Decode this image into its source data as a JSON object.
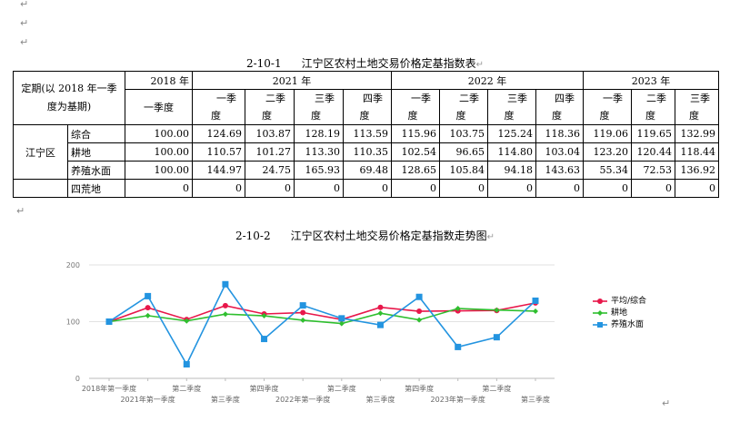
{
  "paragraph_marks": [
    "↵",
    "↵",
    "↵"
  ],
  "table": {
    "number": "2-10-1",
    "title": "江宁区农村土地交易价格定基指数表",
    "header_label": "定期(以 2018 年一季度为基期)",
    "years": [
      "2018 年",
      "2021 年",
      "2022 年",
      "2023 年"
    ],
    "quarters": [
      "一季度",
      "一季度",
      "二季度",
      "三季度",
      "四季度",
      "一季度",
      "二季度",
      "三季度",
      "四季度",
      "一季度",
      "二季度",
      "三季度"
    ],
    "region": "江宁区",
    "rows": [
      {
        "label": "综合",
        "values": [
          "100.00",
          "124.69",
          "103.87",
          "128.19",
          "113.59",
          "115.96",
          "103.75",
          "125.24",
          "118.36",
          "119.06",
          "119.65",
          "132.99"
        ]
      },
      {
        "label": "耕地",
        "values": [
          "100.00",
          "110.57",
          "101.27",
          "113.30",
          "110.35",
          "102.54",
          "96.65",
          "114.80",
          "103.04",
          "123.20",
          "120.44",
          "118.44"
        ]
      },
      {
        "label": "养殖水面",
        "values": [
          "100.00",
          "144.97",
          "24.75",
          "165.93",
          "69.48",
          "128.65",
          "105.84",
          "94.18",
          "143.63",
          "55.34",
          "72.53",
          "136.92"
        ]
      },
      {
        "label": "四荒地",
        "values": [
          "0",
          "0",
          "0",
          "0",
          "0",
          "0",
          "0",
          "0",
          "0",
          "0",
          "0",
          "0"
        ]
      }
    ]
  },
  "chart_section": {
    "number": "2-10-2",
    "title": "江宁区农村土地交易价格定基指数走势图"
  },
  "chart_data": {
    "type": "line",
    "categories": [
      "2018年第一季度",
      "2021年第一季度",
      "第二季度",
      "第三季度",
      "第四季度",
      "2022年第一季度",
      "第二季度",
      "第三季度",
      "第四季度",
      "2023年第一季度",
      "第二季度",
      "第三季度"
    ],
    "ylim": [
      0,
      200
    ],
    "yticks": [
      0,
      100,
      200
    ],
    "grid": true,
    "legend_position": "right",
    "series": [
      {
        "name": "平均/综合",
        "color": "#e8174a",
        "marker": "circle",
        "values": [
          100.0,
          124.69,
          103.87,
          128.19,
          113.59,
          115.96,
          103.75,
          125.24,
          118.36,
          119.06,
          119.65,
          132.99
        ]
      },
      {
        "name": "耕地",
        "color": "#2fbf2f",
        "marker": "diamond",
        "values": [
          100.0,
          110.57,
          101.27,
          113.3,
          110.35,
          102.54,
          96.65,
          114.8,
          103.04,
          123.2,
          120.44,
          118.44
        ]
      },
      {
        "name": "养殖水面",
        "color": "#2394e0",
        "marker": "square",
        "values": [
          100.0,
          144.97,
          24.75,
          165.93,
          69.48,
          128.65,
          105.84,
          94.18,
          143.63,
          55.34,
          72.53,
          136.92
        ]
      }
    ]
  }
}
